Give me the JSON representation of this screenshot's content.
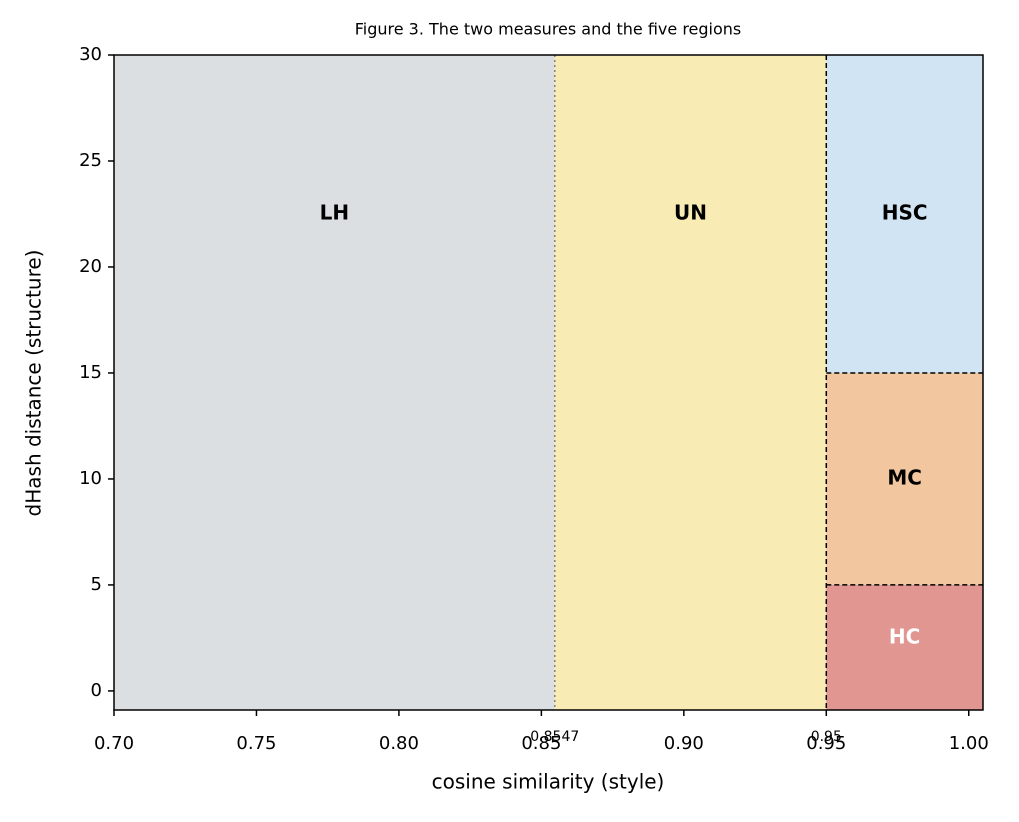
{
  "chart_data": {
    "type": "regions",
    "title": "Figure 3. The two measures and the five regions",
    "x_label": "cosine similarity (style)",
    "y_label": "dHash distance (structure)",
    "xlim": [
      0.7,
      1.005
    ],
    "ylim": [
      -0.9,
      30
    ],
    "xticks": [
      {
        "value": 0.7,
        "label": "0.70"
      },
      0.75,
      {
        "value": 0.8,
        "label": "0.80"
      },
      0.85,
      {
        "value": 0.9,
        "label": "0.90"
      },
      0.95,
      {
        "value": 1.0,
        "label": "1.00"
      }
    ],
    "yticks": [
      0,
      5,
      10,
      15,
      20,
      25,
      30
    ],
    "regions": [
      {
        "name": "LH",
        "x": [
          0.7,
          0.8547
        ],
        "y": [
          -0.9,
          30
        ],
        "color": "#dcdfe2",
        "label_color": "#000000"
      },
      {
        "name": "UN",
        "x": [
          0.8547,
          0.95
        ],
        "y": [
          -0.9,
          30
        ],
        "color": "#f9ebb4",
        "label_color": "#000000"
      },
      {
        "name": "HSC",
        "x": [
          0.95,
          1.005
        ],
        "y": [
          15,
          30
        ],
        "color": "#d0e4f4",
        "label_color": "#000000"
      },
      {
        "name": "MC",
        "x": [
          0.95,
          1.005
        ],
        "y": [
          5,
          15
        ],
        "color": "#f2c69e",
        "label_color": "#000000"
      },
      {
        "name": "HC",
        "x": [
          0.95,
          1.005
        ],
        "y": [
          -0.9,
          5
        ],
        "color": "#e19691",
        "label_color": "#ffffff"
      }
    ],
    "thresholds": [
      {
        "x": 0.8547,
        "label": "0.8547",
        "style": "dotted",
        "color": "#808080"
      },
      {
        "x": 0.95,
        "label": "0.95",
        "style": "dashed",
        "color": "#000000"
      }
    ]
  }
}
